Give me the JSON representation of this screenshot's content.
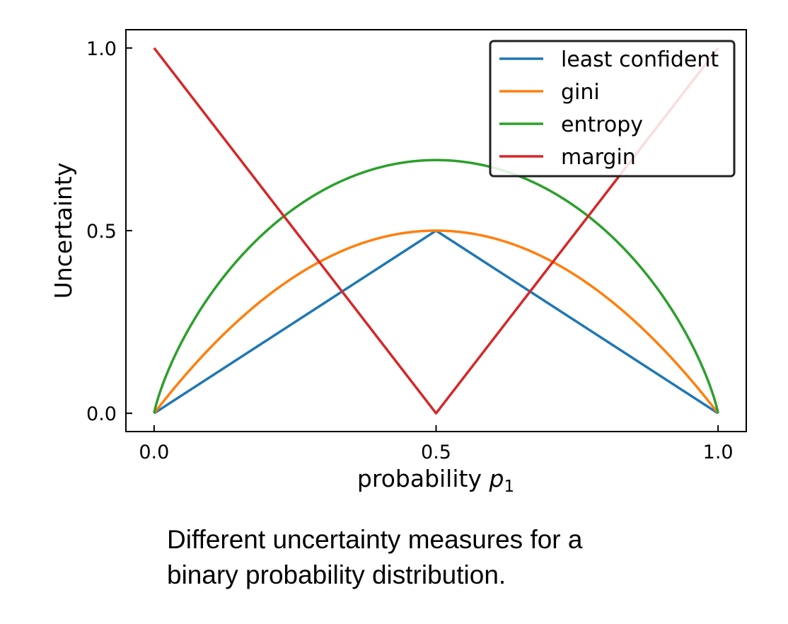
{
  "chart_data": {
    "type": "line",
    "xlabel_text": "probability ",
    "xlabel_var": "p",
    "xlabel_sub": "1",
    "ylabel": "Uncertainty",
    "xlim": [
      -0.05,
      1.05
    ],
    "ylim": [
      -0.05,
      1.05
    ],
    "xticks": [
      0.0,
      0.5,
      1.0
    ],
    "xtick_labels": [
      "0.0",
      "0.5",
      "1.0"
    ],
    "yticks": [
      0.0,
      0.5,
      1.0
    ],
    "ytick_labels": [
      "0.0",
      "0.5",
      "1.0"
    ],
    "grid": false,
    "legend_position": "top-right",
    "series": [
      {
        "name": "least confident",
        "color": "#1f77b4",
        "function": "1 - max(p, 1-p)",
        "x": [
          0.0,
          0.5,
          1.0
        ],
        "y": [
          0.0,
          0.5,
          0.0
        ]
      },
      {
        "name": "gini",
        "color": "#ff7f0e",
        "function": "1 - p^2 - (1-p)^2",
        "x": [
          0.0,
          0.25,
          0.5,
          0.75,
          1.0
        ],
        "y": [
          0.0,
          0.375,
          0.5,
          0.375,
          0.0
        ]
      },
      {
        "name": "entropy",
        "color": "#2ca02c",
        "function": "-p ln p - (1-p) ln(1-p)",
        "x": [
          0.0,
          0.25,
          0.5,
          0.75,
          1.0
        ],
        "y": [
          0.0,
          0.562,
          0.693,
          0.562,
          0.0
        ]
      },
      {
        "name": "margin",
        "color": "#d62728",
        "function": "|2p - 1|",
        "x": [
          0.0,
          0.5,
          1.0
        ],
        "y": [
          1.0,
          0.0,
          1.0
        ]
      }
    ]
  },
  "caption": {
    "line1": "Different uncertainty measures for a",
    "line2": "binary probability distribution."
  }
}
